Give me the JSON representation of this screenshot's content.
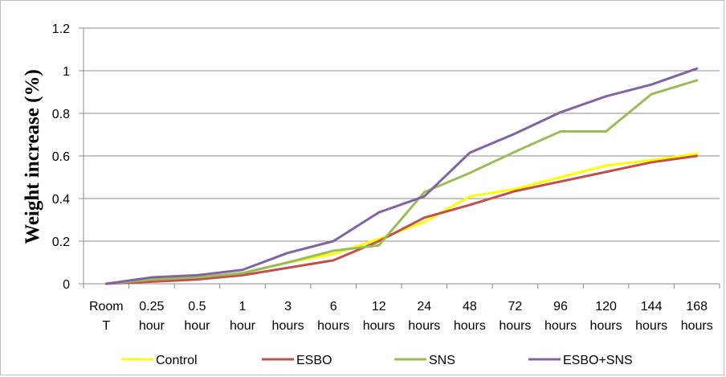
{
  "chart_data": {
    "type": "line",
    "title": "",
    "xlabel": "",
    "ylabel": "Weight increase (%)",
    "ylim": [
      0,
      1.2
    ],
    "yticks": [
      "0",
      "0.2",
      "0.4",
      "0.6",
      "0.8",
      "1",
      "1.2"
    ],
    "categories": [
      [
        "Room",
        "T"
      ],
      [
        "0.25",
        "hour"
      ],
      [
        "0.5",
        "hour"
      ],
      [
        "1",
        "hour"
      ],
      [
        "3",
        "hours"
      ],
      [
        "6",
        "hours"
      ],
      [
        "12",
        "hours"
      ],
      [
        "24",
        "hours"
      ],
      [
        "48",
        "hours"
      ],
      [
        "72",
        "hours"
      ],
      [
        "96",
        "hours"
      ],
      [
        "120",
        "hours"
      ],
      [
        "144",
        "hours"
      ],
      [
        "168",
        "hours"
      ]
    ],
    "grid": true,
    "legend_position": "bottom",
    "series": [
      {
        "name": "Control",
        "color": "#ffff00",
        "values": [
          0,
          0.02,
          0.03,
          0.05,
          0.1,
          0.14,
          0.21,
          0.29,
          0.41,
          0.445,
          0.5,
          0.555,
          0.58,
          0.61
        ]
      },
      {
        "name": "ESBO",
        "color": "#c0504d",
        "values": [
          0,
          0.01,
          0.02,
          0.04,
          0.075,
          0.11,
          0.2,
          0.31,
          0.37,
          0.435,
          0.48,
          0.525,
          0.57,
          0.6
        ]
      },
      {
        "name": "SNS",
        "color": "#9bbb59",
        "values": [
          0,
          0.02,
          0.03,
          0.05,
          0.1,
          0.155,
          0.18,
          0.43,
          0.52,
          0.62,
          0.715,
          0.715,
          0.89,
          0.955
        ]
      },
      {
        "name": "ESBO+SNS",
        "color": "#8064a2",
        "values": [
          0,
          0.03,
          0.04,
          0.065,
          0.145,
          0.2,
          0.335,
          0.41,
          0.615,
          0.705,
          0.805,
          0.88,
          0.935,
          1.01
        ]
      }
    ]
  }
}
